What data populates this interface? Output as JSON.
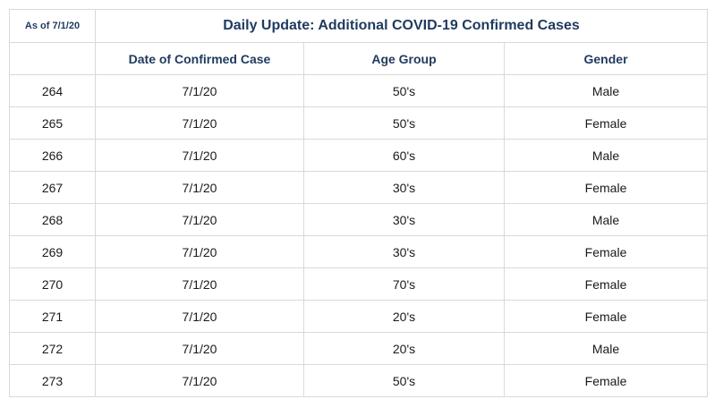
{
  "table": {
    "as_of": "As of 7/1/20",
    "title": "Daily Update: Additional COVID-19 Confirmed Cases",
    "headers": [
      "",
      "Date of Confirmed Case",
      "Age Group",
      "Gender"
    ],
    "rows": [
      [
        "264",
        "7/1/20",
        "50's",
        "Male"
      ],
      [
        "265",
        "7/1/20",
        "50's",
        "Female"
      ],
      [
        "266",
        "7/1/20",
        "60's",
        "Male"
      ],
      [
        "267",
        "7/1/20",
        "30's",
        "Female"
      ],
      [
        "268",
        "7/1/20",
        "30's",
        "Male"
      ],
      [
        "269",
        "7/1/20",
        "30's",
        "Female"
      ],
      [
        "270",
        "7/1/20",
        "70's",
        "Female"
      ],
      [
        "271",
        "7/1/20",
        "20's",
        "Female"
      ],
      [
        "272",
        "7/1/20",
        "20's",
        "Male"
      ],
      [
        "273",
        "7/1/20",
        "50's",
        "Female"
      ]
    ]
  }
}
